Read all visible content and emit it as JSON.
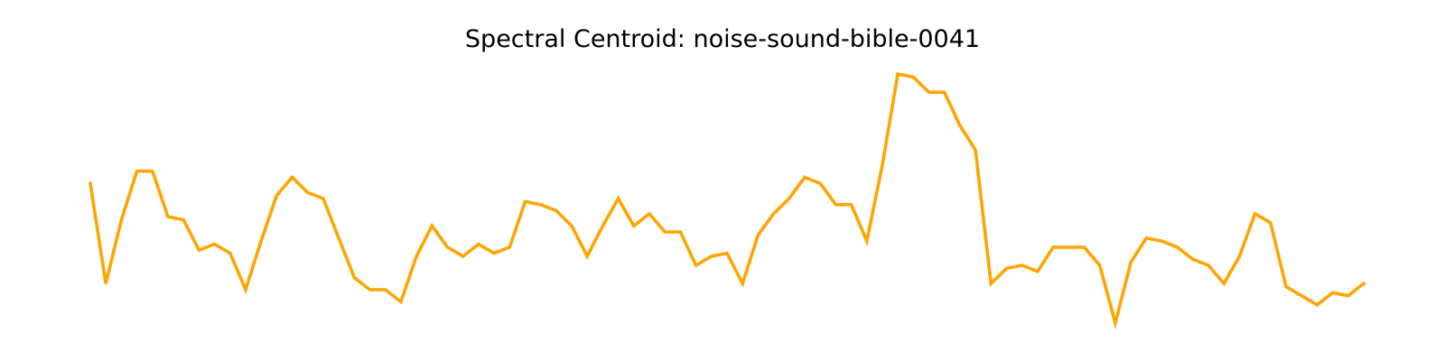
{
  "chart_data": {
    "type": "line",
    "title": "Spectral Centroid: noise-sound-bible-0041",
    "xlabel": "",
    "ylabel": "",
    "axes_visible": false,
    "grid": false,
    "x": [
      0,
      1,
      2,
      3,
      4,
      5,
      6,
      7,
      8,
      9,
      10,
      11,
      12,
      13,
      14,
      15,
      16,
      17,
      18,
      19,
      20,
      21,
      22,
      23,
      24,
      25,
      26,
      27,
      28,
      29,
      30,
      31,
      32,
      33,
      34,
      35,
      36,
      37,
      38,
      39,
      40,
      41,
      42,
      43,
      44,
      45,
      46,
      47,
      48,
      49,
      50,
      51,
      52,
      53,
      54,
      55,
      56,
      57,
      58,
      59,
      60,
      61,
      62,
      63,
      64,
      65,
      66,
      67,
      68,
      69,
      70,
      71,
      72,
      73,
      74,
      75,
      76,
      77,
      78,
      79,
      80,
      81,
      82
    ],
    "series": [
      {
        "color": "#ffa500",
        "values": [
          0.59,
          0.26,
          0.47,
          0.63,
          0.63,
          0.48,
          0.47,
          0.37,
          0.39,
          0.36,
          0.24,
          0.4,
          0.55,
          0.61,
          0.56,
          0.54,
          0.41,
          0.28,
          0.24,
          0.24,
          0.2,
          0.35,
          0.45,
          0.38,
          0.35,
          0.39,
          0.36,
          0.38,
          0.53,
          0.52,
          0.5,
          0.45,
          0.35,
          0.45,
          0.54,
          0.45,
          0.49,
          0.43,
          0.43,
          0.32,
          0.35,
          0.36,
          0.26,
          0.42,
          0.49,
          0.54,
          0.61,
          0.59,
          0.52,
          0.52,
          0.4,
          0.65,
          0.95,
          0.94,
          0.89,
          0.89,
          0.78,
          0.7,
          0.26,
          0.31,
          0.32,
          0.3,
          0.38,
          0.38,
          0.38,
          0.32,
          0.13,
          0.33,
          0.41,
          0.4,
          0.38,
          0.34,
          0.32,
          0.26,
          0.35,
          0.49,
          0.46,
          0.25,
          0.22,
          0.19,
          0.23,
          0.22,
          0.26
        ]
      }
    ],
    "xlim": [
      0,
      82
    ],
    "ylim": [
      0.13,
      0.95
    ]
  }
}
